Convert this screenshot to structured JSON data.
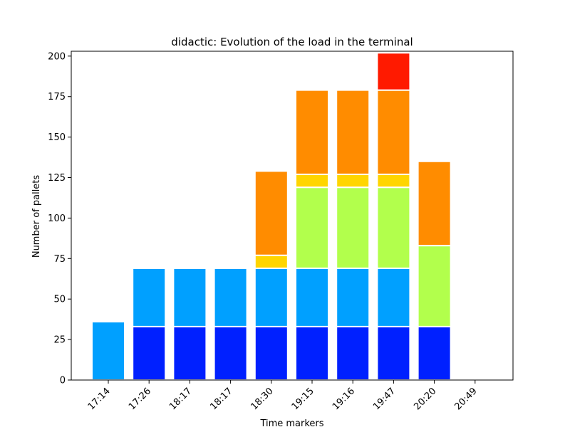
{
  "chart_data": {
    "type": "bar",
    "title": "didactic: Evolution of the load in the terminal",
    "xlabel": "Time markers",
    "ylabel": "Number of pallets",
    "ylim": [
      0,
      203
    ],
    "yticks": [
      0,
      25,
      50,
      75,
      100,
      125,
      150,
      175,
      200
    ],
    "categories": [
      "17:14",
      "17:26",
      "18:17",
      "18:17",
      "18:30",
      "19:15",
      "19:16",
      "19:47",
      "20:20",
      "20:49"
    ],
    "stacked": true,
    "grid": false,
    "legend": false,
    "series": [
      {
        "color": "#0020ff",
        "values": [
          0,
          33,
          33,
          33,
          33,
          33,
          33,
          33,
          33,
          0
        ]
      },
      {
        "color": "#00a0ff",
        "values": [
          36,
          36,
          36,
          36,
          36,
          36,
          36,
          36,
          0,
          0
        ]
      },
      {
        "color": "#b2ff4c",
        "values": [
          0,
          0,
          0,
          0,
          0,
          50,
          50,
          50,
          50,
          0
        ]
      },
      {
        "color": "#ffd500",
        "values": [
          0,
          0,
          0,
          0,
          8,
          8,
          8,
          8,
          0,
          0
        ]
      },
      {
        "color": "#ff8c00",
        "values": [
          0,
          0,
          0,
          0,
          52,
          52,
          52,
          52,
          52,
          0
        ]
      },
      {
        "color": "#ff1a00",
        "values": [
          0,
          0,
          0,
          0,
          0,
          0,
          0,
          23,
          0,
          0
        ]
      }
    ]
  }
}
